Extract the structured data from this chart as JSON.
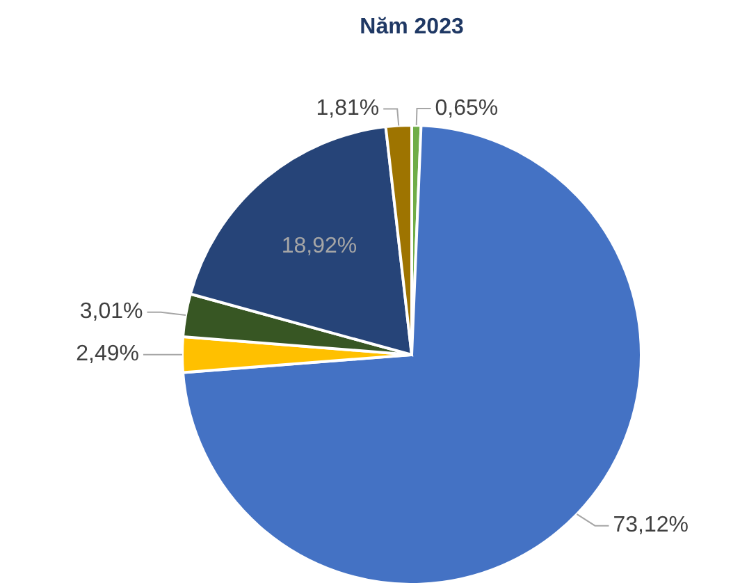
{
  "chart_data": {
    "type": "pie",
    "title": "Năm 2023",
    "categories": [
      null,
      null,
      null,
      null,
      null,
      null
    ],
    "values": [
      0.65,
      73.12,
      2.49,
      3.01,
      18.92,
      1.81
    ],
    "colors": [
      "#70ad47",
      "#4472c4",
      "#ffc000",
      "#375623",
      "#264478",
      "#9e7400"
    ],
    "value_labels": [
      "0,65%",
      "73,12%",
      "2,49%",
      "3,01%",
      "18,92%",
      "1,81%"
    ]
  }
}
